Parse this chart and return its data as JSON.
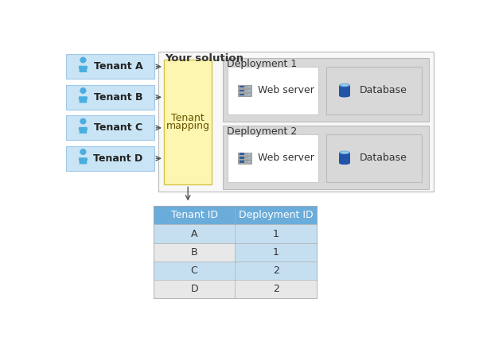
{
  "title": "Your solution",
  "bg_color": "#ffffff",
  "tenant_box_color": "#c9e4f5",
  "tenant_box_border": "#a0c8e8",
  "mapping_box_color": "#fdf6b0",
  "mapping_box_border": "#d4c44a",
  "solution_box_color": "#f8f8f8",
  "solution_box_border": "#bbbbbb",
  "deployment_outer_color": "#d8d8d8",
  "deployment_outer_border": "#bbbbbb",
  "webserver_box_color": "#ffffff",
  "webserver_box_border": "#cccccc",
  "table_header_color": "#6aacda",
  "table_row_blue": "#c5dff0",
  "table_row_gray": "#e8e8e8",
  "table_border": "#aaaaaa",
  "tenants": [
    "Tenant A",
    "Tenant B",
    "Tenant C",
    "Tenant D"
  ],
  "table_data": [
    [
      "A",
      "1"
    ],
    [
      "B",
      "1"
    ],
    [
      "C",
      "2"
    ],
    [
      "D",
      "2"
    ]
  ],
  "icon_blue": "#3a96d8",
  "icon_dark_blue": "#1a5fa8",
  "person_body_color": "#4aaee0",
  "arrow_color": "#555555",
  "text_color": "#333333",
  "server_gray": "#888888",
  "server_blue": "#3060a0"
}
